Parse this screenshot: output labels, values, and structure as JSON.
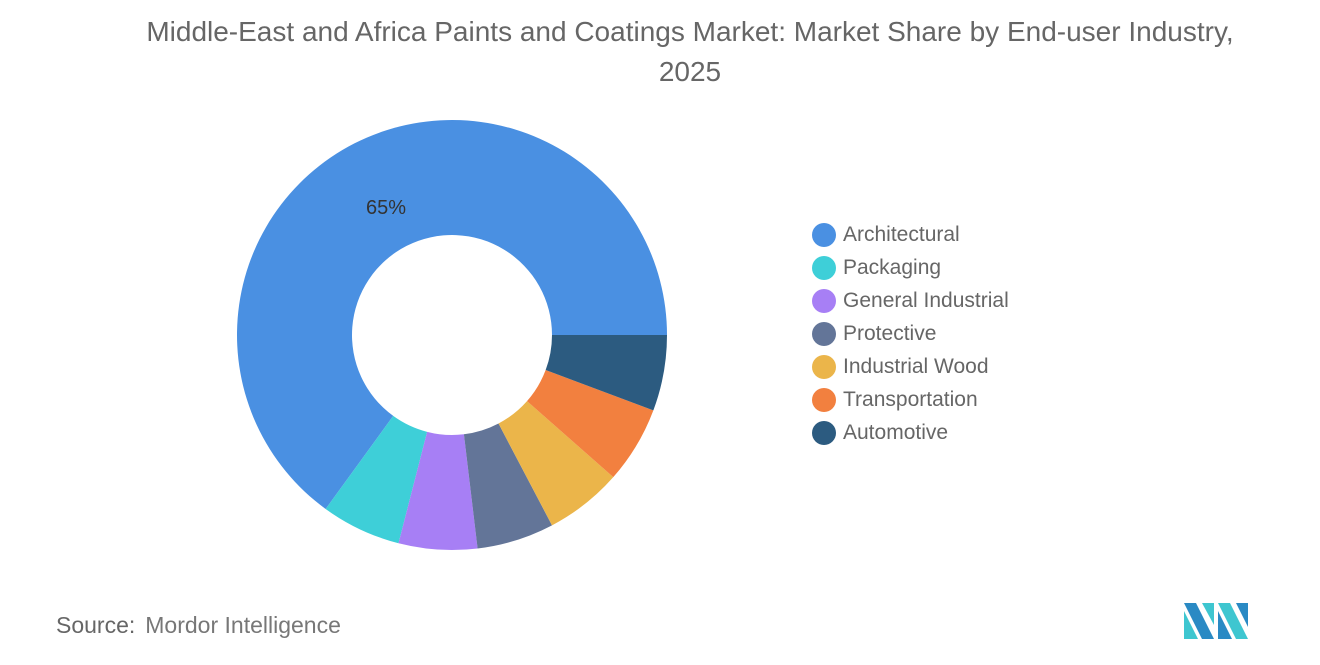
{
  "chart_data": {
    "type": "pie",
    "variant": "donut",
    "title": "Middle-East and Africa Paints and Coatings Market: Market Share by End-user Industry, 2025",
    "categories": [
      "Architectural",
      "Packaging",
      "General Industrial",
      "Protective",
      "Industrial Wood",
      "Transportation",
      "Automotive"
    ],
    "values": [
      65,
      6.0,
      5.9,
      5.8,
      5.8,
      5.8,
      5.7
    ],
    "data_labels": [
      "65%",
      "",
      "",
      "",
      "",
      "",
      ""
    ],
    "colors": [
      "#4a90e2",
      "#3ecfd8",
      "#a77ff5",
      "#637598",
      "#ebb54a",
      "#f2803f",
      "#2c5b80"
    ],
    "legend_position": "right"
  },
  "source": {
    "label": "Source:",
    "value": "Mordor Intelligence"
  }
}
